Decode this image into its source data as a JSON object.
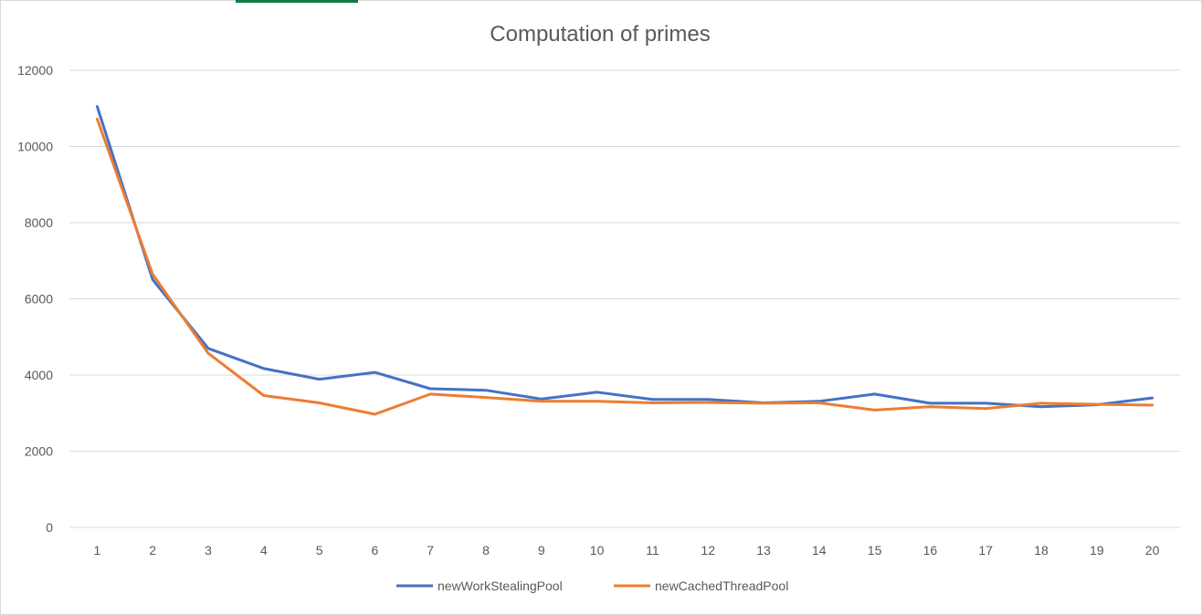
{
  "chart_data": {
    "type": "line",
    "title": "Computation of primes",
    "xlabel": "",
    "ylabel": "",
    "categories": [
      "1",
      "2",
      "3",
      "4",
      "5",
      "6",
      "7",
      "8",
      "9",
      "10",
      "11",
      "12",
      "13",
      "14",
      "15",
      "16",
      "17",
      "18",
      "19",
      "20"
    ],
    "ylim": [
      0,
      12000
    ],
    "yticks": [
      0,
      2000,
      4000,
      6000,
      8000,
      10000,
      12000
    ],
    "grid": true,
    "legend_position": "bottom",
    "series": [
      {
        "name": "newWorkStealingPool",
        "color": "#4472c4",
        "values": [
          11050,
          6500,
          4700,
          4170,
          3890,
          4070,
          3640,
          3600,
          3370,
          3550,
          3360,
          3360,
          3270,
          3310,
          3500,
          3260,
          3260,
          3170,
          3220,
          3400
        ]
      },
      {
        "name": "newCachedThreadPool",
        "color": "#ed7d31",
        "values": [
          10720,
          6640,
          4570,
          3460,
          3270,
          2970,
          3500,
          3410,
          3310,
          3310,
          3270,
          3280,
          3260,
          3270,
          3080,
          3170,
          3120,
          3260,
          3230,
          3210
        ]
      }
    ]
  }
}
